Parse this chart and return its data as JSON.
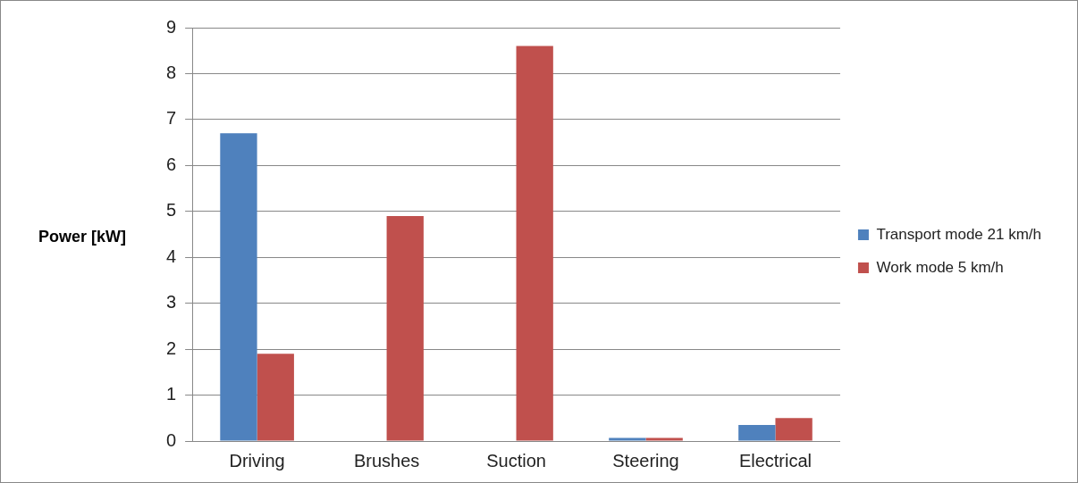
{
  "chart_data": {
    "type": "bar",
    "ylabel": "Power [kW]",
    "categories": [
      "Driving",
      "Brushes",
      "Suction",
      "Steering",
      "Electrical"
    ],
    "series": [
      {
        "name": "Transport mode 21 km/h",
        "color": "#4f81bd",
        "values": [
          6.7,
          0,
          0,
          0.07,
          0.35
        ]
      },
      {
        "name": "Work mode 5 km/h",
        "color": "#c0504d",
        "values": [
          1.9,
          4.9,
          8.6,
          0.07,
          0.5
        ]
      }
    ],
    "ylim": [
      0,
      9
    ],
    "yticks": [
      0,
      1,
      2,
      3,
      4,
      5,
      6,
      7,
      8,
      9
    ],
    "grid": "y",
    "legend": "right"
  }
}
